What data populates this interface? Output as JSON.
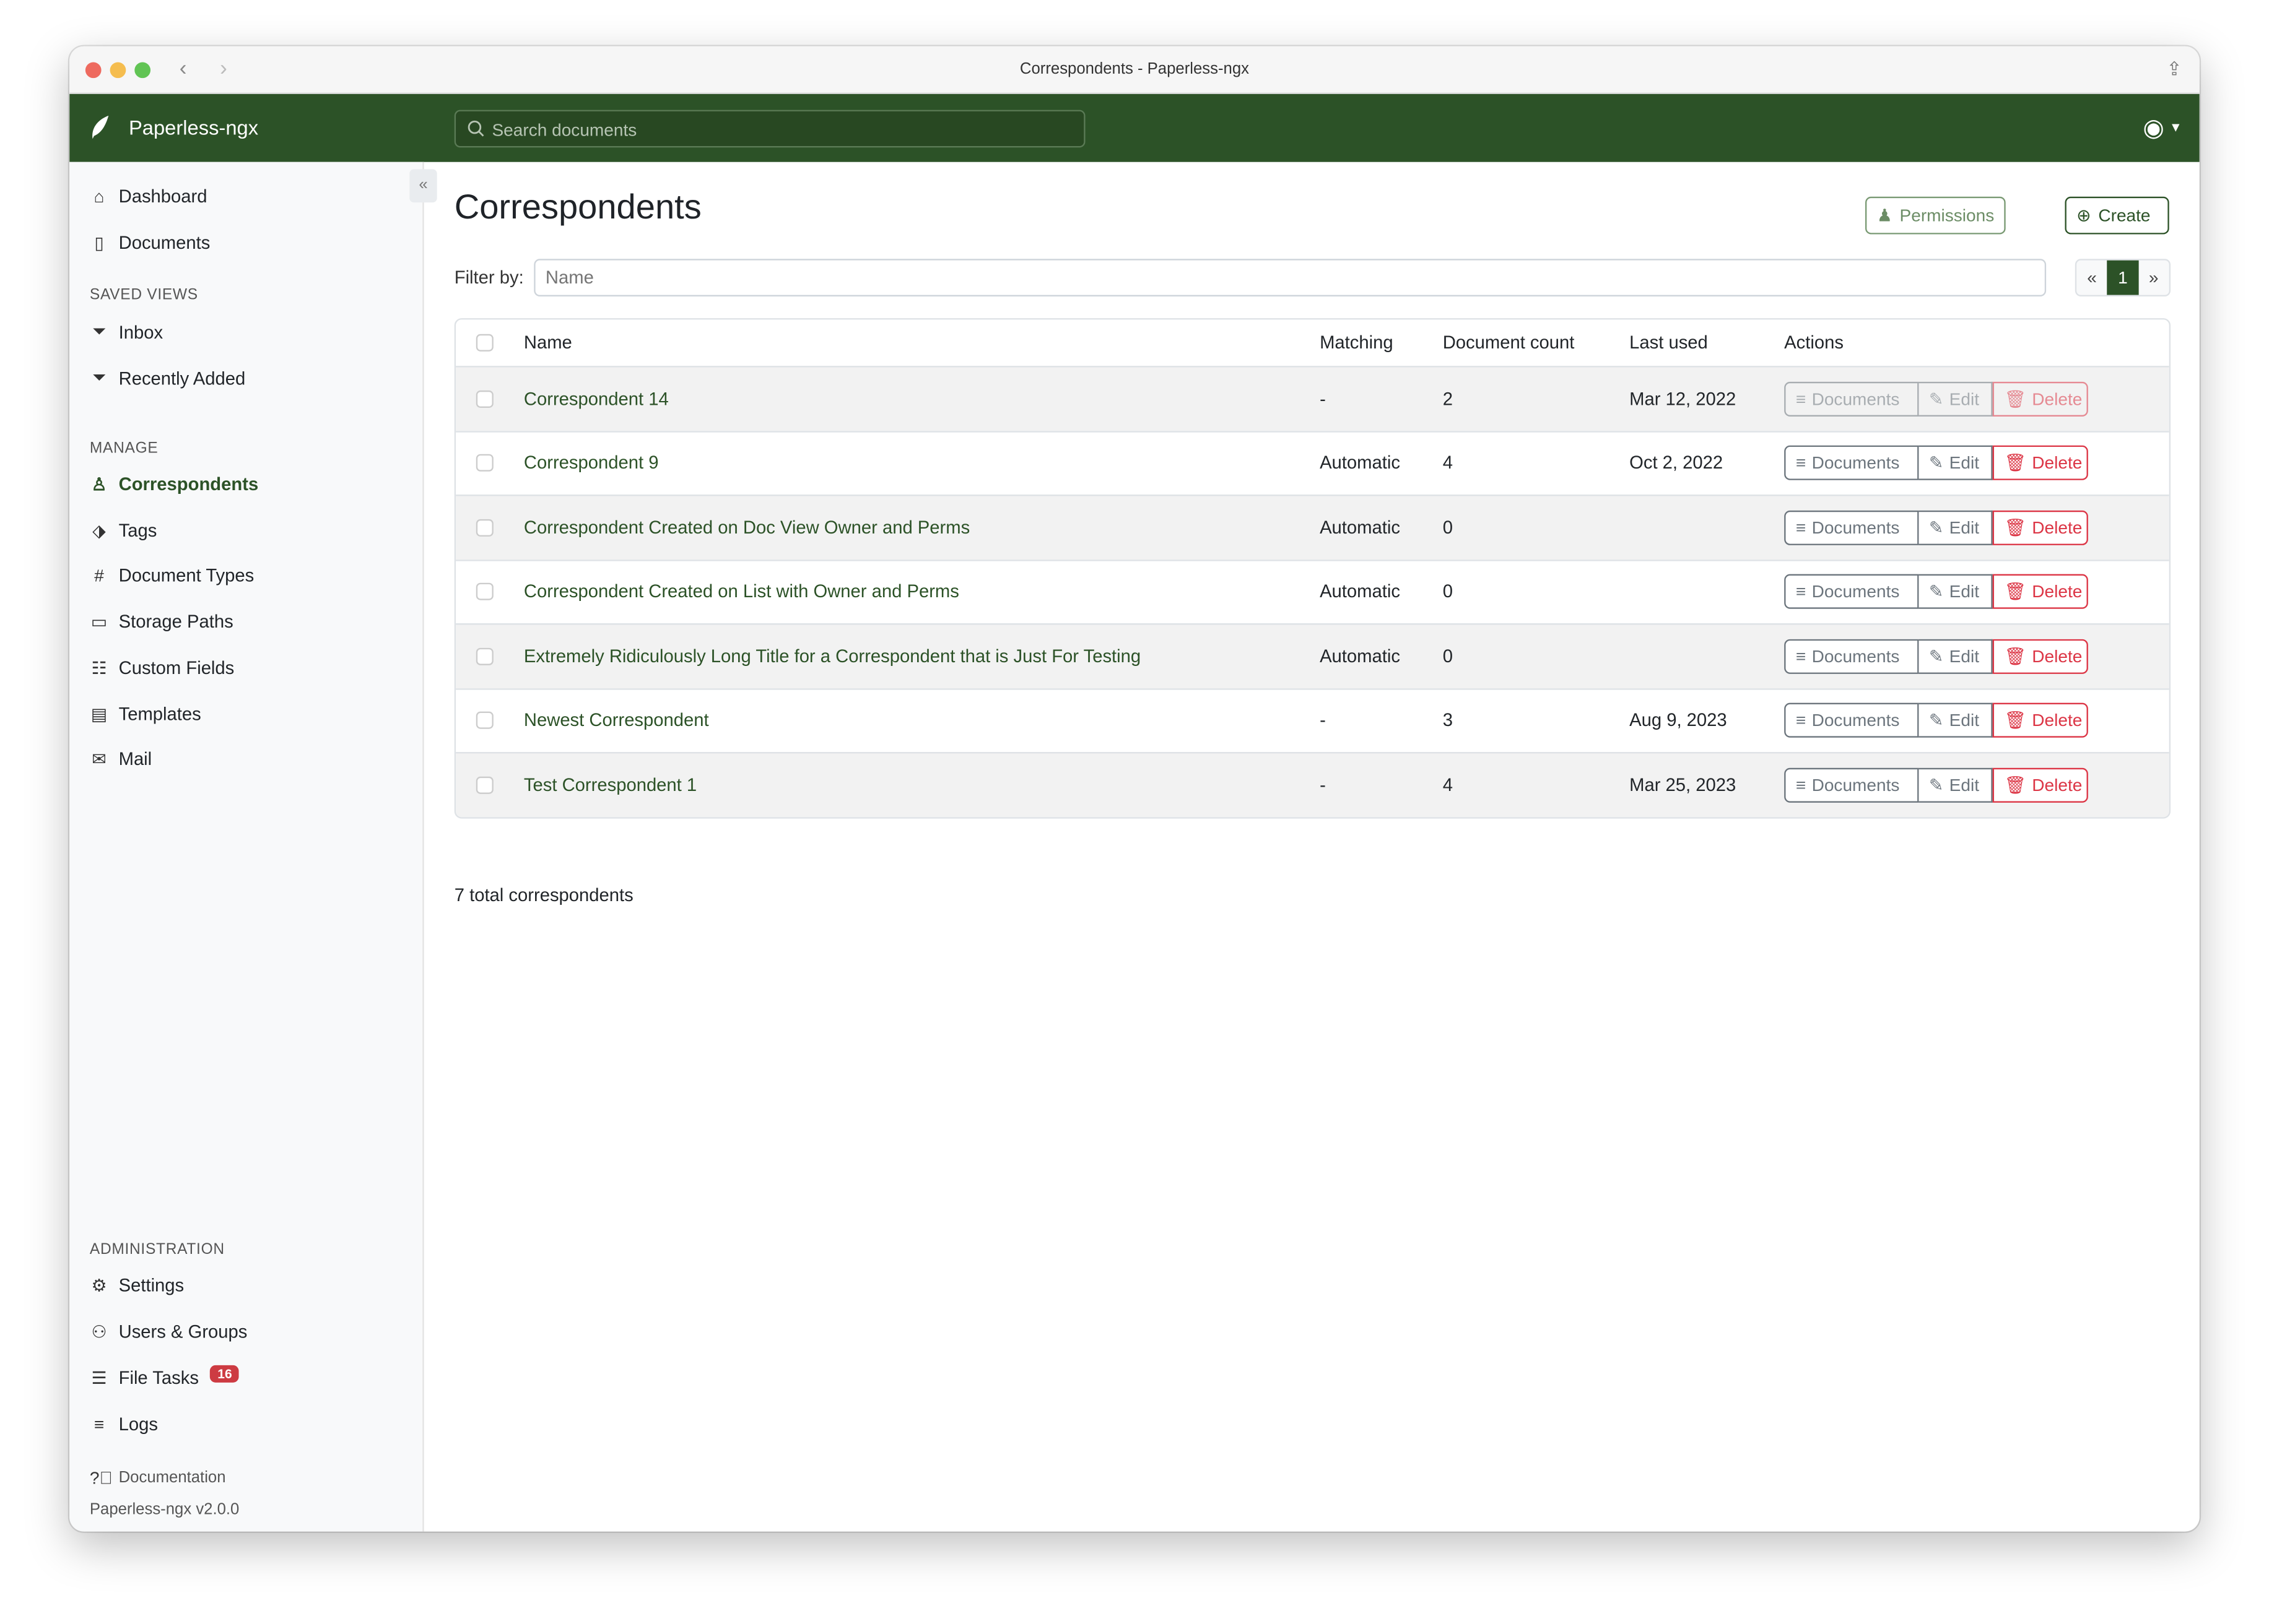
{
  "window": {
    "title": "Correspondents - Paperless-ngx"
  },
  "navbar": {
    "brand": "Paperless-ngx",
    "search_placeholder": "Search documents",
    "brand_color": "#2c5227"
  },
  "sidebar": {
    "top": [
      {
        "label": "Dashboard",
        "icon": "house-icon"
      },
      {
        "label": "Documents",
        "icon": "files-icon"
      }
    ],
    "saved_views_heading": "SAVED VIEWS",
    "saved_views": [
      {
        "label": "Inbox",
        "icon": "funnel-icon"
      },
      {
        "label": "Recently Added",
        "icon": "funnel-icon"
      }
    ],
    "manage_heading": "MANAGE",
    "manage": [
      {
        "label": "Correspondents",
        "icon": "person-icon",
        "active": true
      },
      {
        "label": "Tags",
        "icon": "tags-icon"
      },
      {
        "label": "Document Types",
        "icon": "hash-icon"
      },
      {
        "label": "Storage Paths",
        "icon": "folder-icon"
      },
      {
        "label": "Custom Fields",
        "icon": "ui-radios-icon"
      },
      {
        "label": "Templates",
        "icon": "file-text-icon"
      },
      {
        "label": "Mail",
        "icon": "envelope-icon"
      }
    ],
    "admin_heading": "ADMINISTRATION",
    "admin": [
      {
        "label": "Settings",
        "icon": "gear-icon"
      },
      {
        "label": "Users & Groups",
        "icon": "people-icon"
      },
      {
        "label": "File Tasks",
        "icon": "list-task-icon",
        "badge": "16"
      },
      {
        "label": "Logs",
        "icon": "text-left-icon"
      }
    ],
    "documentation": "Documentation",
    "version": "Paperless-ngx v2.0.0"
  },
  "main": {
    "title": "Correspondents",
    "permissions_label": "Permissions",
    "create_label": "Create",
    "filter_label": "Filter by:",
    "filter_placeholder": "Name",
    "pagination": {
      "prev": "«",
      "current": "1",
      "next": "»"
    },
    "columns": [
      "Name",
      "Matching",
      "Document count",
      "Last used",
      "Actions"
    ],
    "actions": {
      "documents": "Documents",
      "edit": "Edit",
      "delete": "Delete"
    },
    "rows": [
      {
        "name": "Correspondent 14",
        "matching": "-",
        "count": "2",
        "last_used": "Mar 12, 2022",
        "disabled": true
      },
      {
        "name": "Correspondent 9",
        "matching": "Automatic",
        "count": "4",
        "last_used": "Oct 2, 2022"
      },
      {
        "name": "Correspondent Created on Doc View Owner and Perms",
        "matching": "Automatic",
        "count": "0",
        "last_used": ""
      },
      {
        "name": "Correspondent Created on List with Owner and Perms",
        "matching": "Automatic",
        "count": "0",
        "last_used": ""
      },
      {
        "name": "Extremely Ridiculously Long Title for a Correspondent that is Just For Testing",
        "matching": "Automatic",
        "count": "0",
        "last_used": ""
      },
      {
        "name": "Newest Correspondent",
        "matching": "-",
        "count": "3",
        "last_used": "Aug 9, 2023"
      },
      {
        "name": "Test Correspondent 1",
        "matching": "-",
        "count": "4",
        "last_used": "Mar 25, 2023"
      }
    ],
    "total": "7 total correspondents"
  }
}
